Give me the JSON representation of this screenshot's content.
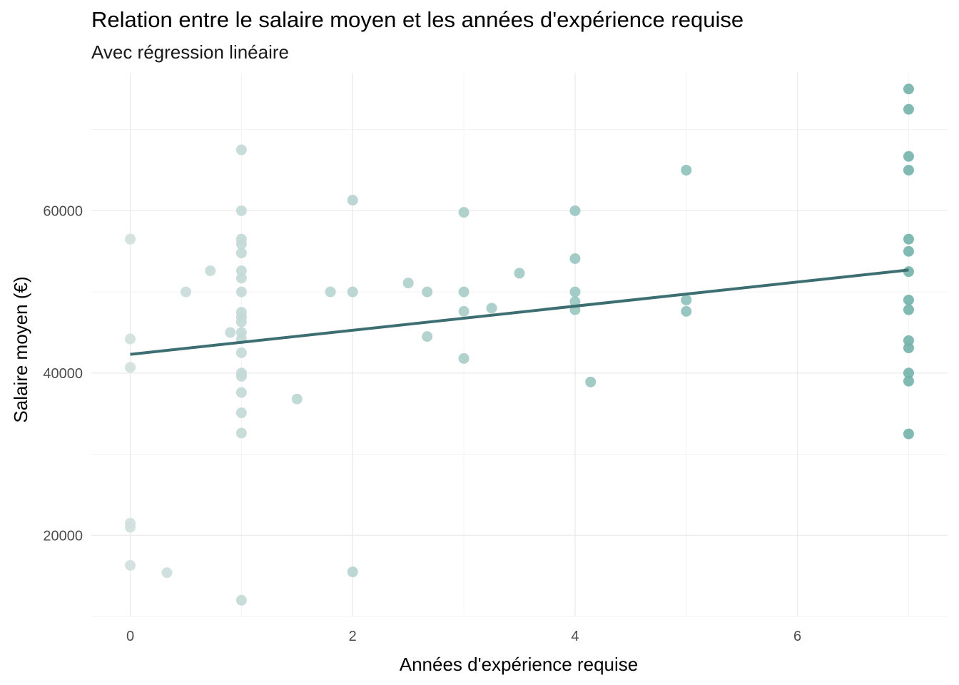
{
  "chart_data": {
    "type": "scatter",
    "title": "Relation entre le salaire moyen et les années d'expérience requise",
    "subtitle": "Avec régression linéaire",
    "xlabel": "Années d'expérience requise",
    "ylabel": "Salaire moyen (€)",
    "xlim": [
      -0.35,
      7.35
    ],
    "ylim": [
      10000,
      77000
    ],
    "x_ticks": [
      0,
      2,
      4,
      6
    ],
    "y_ticks": [
      20000,
      40000,
      60000
    ],
    "x_tick_labels": [
      "0",
      "2",
      "4",
      "6"
    ],
    "y_tick_labels": [
      "20000",
      "40000",
      "60000"
    ],
    "grid": true,
    "point_color_low": "#cfdfdd",
    "point_color_high": "#73b3ab",
    "line_color": "#3d6e72",
    "points": [
      {
        "x": 0,
        "y": 56500
      },
      {
        "x": 0,
        "y": 44200
      },
      {
        "x": 0,
        "y": 40700
      },
      {
        "x": 0,
        "y": 21500
      },
      {
        "x": 0,
        "y": 21000
      },
      {
        "x": 0,
        "y": 16300
      },
      {
        "x": 0.33,
        "y": 15400
      },
      {
        "x": 0.5,
        "y": 50000
      },
      {
        "x": 0.72,
        "y": 52600
      },
      {
        "x": 0.9,
        "y": 45000
      },
      {
        "x": 1,
        "y": 67500
      },
      {
        "x": 1,
        "y": 60000
      },
      {
        "x": 1,
        "y": 56500
      },
      {
        "x": 1,
        "y": 55900
      },
      {
        "x": 1,
        "y": 54800
      },
      {
        "x": 1,
        "y": 52600
      },
      {
        "x": 1,
        "y": 51700
      },
      {
        "x": 1,
        "y": 50000
      },
      {
        "x": 1,
        "y": 47500
      },
      {
        "x": 1,
        "y": 46900
      },
      {
        "x": 1,
        "y": 46300
      },
      {
        "x": 1,
        "y": 45000
      },
      {
        "x": 1,
        "y": 44200
      },
      {
        "x": 1,
        "y": 42500
      },
      {
        "x": 1,
        "y": 40000
      },
      {
        "x": 1,
        "y": 39600
      },
      {
        "x": 1,
        "y": 37600
      },
      {
        "x": 1,
        "y": 35100
      },
      {
        "x": 1,
        "y": 32600
      },
      {
        "x": 1,
        "y": 12000
      },
      {
        "x": 1.5,
        "y": 36800
      },
      {
        "x": 1.8,
        "y": 50000
      },
      {
        "x": 2,
        "y": 61300
      },
      {
        "x": 2,
        "y": 50000
      },
      {
        "x": 2,
        "y": 15500
      },
      {
        "x": 2.5,
        "y": 51100
      },
      {
        "x": 2.67,
        "y": 50000
      },
      {
        "x": 2.67,
        "y": 44500
      },
      {
        "x": 3,
        "y": 59800
      },
      {
        "x": 3,
        "y": 50000
      },
      {
        "x": 3,
        "y": 47600
      },
      {
        "x": 3,
        "y": 41800
      },
      {
        "x": 3.25,
        "y": 48000
      },
      {
        "x": 3.5,
        "y": 52300
      },
      {
        "x": 4,
        "y": 60000
      },
      {
        "x": 4,
        "y": 54100
      },
      {
        "x": 4,
        "y": 50000
      },
      {
        "x": 4,
        "y": 48800
      },
      {
        "x": 4,
        "y": 47800
      },
      {
        "x": 4.14,
        "y": 38900
      },
      {
        "x": 5,
        "y": 65000
      },
      {
        "x": 5,
        "y": 49000
      },
      {
        "x": 5,
        "y": 47600
      },
      {
        "x": 7,
        "y": 75000
      },
      {
        "x": 7,
        "y": 72500
      },
      {
        "x": 7,
        "y": 66700
      },
      {
        "x": 7,
        "y": 65000
      },
      {
        "x": 7,
        "y": 56500
      },
      {
        "x": 7,
        "y": 55000
      },
      {
        "x": 7,
        "y": 52500
      },
      {
        "x": 7,
        "y": 49000
      },
      {
        "x": 7,
        "y": 47800
      },
      {
        "x": 7,
        "y": 44000
      },
      {
        "x": 7,
        "y": 43100
      },
      {
        "x": 7,
        "y": 40000
      },
      {
        "x": 7,
        "y": 39000
      },
      {
        "x": 7,
        "y": 32500
      }
    ],
    "regression_line": {
      "x": [
        0,
        7
      ],
      "y": [
        42300,
        52700
      ]
    }
  }
}
